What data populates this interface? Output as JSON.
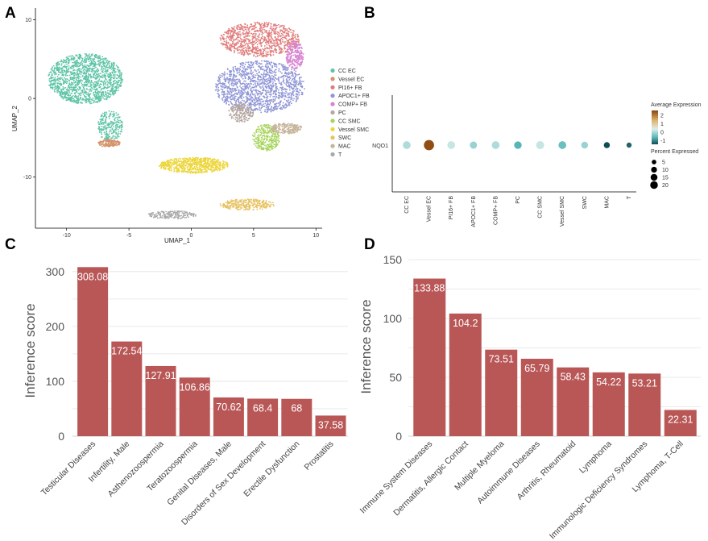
{
  "panels": {
    "A": "A",
    "B": "B",
    "C": "C",
    "D": "D"
  },
  "colors": {
    "bar": "#b95757",
    "grid": "#e3e3e3"
  },
  "chart_data": [
    {
      "id": "A",
      "type": "scatter",
      "xlabel": "UMAP_1",
      "ylabel": "UMAP_2",
      "xticks": [
        -10,
        -5,
        0,
        5,
        10
      ],
      "yticks": [
        -10,
        0,
        10
      ],
      "xlim": [
        -12.5,
        10.5
      ],
      "ylim": [
        -16.5,
        11.5
      ],
      "legend": [
        {
          "label": "CC EC",
          "color": "#5ec4a6"
        },
        {
          "label": "Vessel EC",
          "color": "#d4936a"
        },
        {
          "label": "PI16+ FB",
          "color": "#e07b7b"
        },
        {
          "label": "APOC1+ FB",
          "color": "#8f95d6"
        },
        {
          "label": "COMP+ FB",
          "color": "#d782d2"
        },
        {
          "label": "PC",
          "color": "#b5a6a0"
        },
        {
          "label": "CC SMC",
          "color": "#a7d45c"
        },
        {
          "label": "Vessel SMC",
          "color": "#ecd63c"
        },
        {
          "label": "SWC",
          "color": "#e8c262"
        },
        {
          "label": "MAC",
          "color": "#c6b49a"
        },
        {
          "label": "T",
          "color": "#a9a9a9"
        }
      ],
      "clusters": [
        {
          "name": "CC EC",
          "cx": -8.5,
          "cy": 2.5,
          "rx": 3.0,
          "ry": 3.2,
          "n": 1500
        },
        {
          "name": "CC EC",
          "cx": -6.5,
          "cy": -3.5,
          "rx": 1.0,
          "ry": 2.0,
          "n": 250
        },
        {
          "name": "Vessel EC",
          "cx": -6.6,
          "cy": -5.7,
          "rx": 0.9,
          "ry": 0.5,
          "n": 150
        },
        {
          "name": "PI16+ FB",
          "cx": 5.5,
          "cy": 7.5,
          "rx": 3.2,
          "ry": 2.2,
          "n": 900
        },
        {
          "name": "APOC1+ FB",
          "cx": 5.5,
          "cy": 1.5,
          "rx": 3.6,
          "ry": 3.3,
          "n": 1400
        },
        {
          "name": "COMP+ FB",
          "cx": 8.3,
          "cy": 5.5,
          "rx": 0.7,
          "ry": 1.8,
          "n": 250
        },
        {
          "name": "PC",
          "cx": 4.0,
          "cy": -1.8,
          "rx": 1.0,
          "ry": 1.2,
          "n": 200
        },
        {
          "name": "CC SMC",
          "cx": 6.0,
          "cy": -5.0,
          "rx": 1.1,
          "ry": 1.7,
          "n": 300
        },
        {
          "name": "MAC",
          "cx": 7.6,
          "cy": -3.8,
          "rx": 1.3,
          "ry": 0.7,
          "n": 220
        },
        {
          "name": "Vessel SMC",
          "cx": 0.2,
          "cy": -8.5,
          "rx": 2.8,
          "ry": 1.0,
          "n": 700
        },
        {
          "name": "SWC",
          "cx": 4.5,
          "cy": -13.5,
          "rx": 2.2,
          "ry": 0.7,
          "n": 300
        },
        {
          "name": "T",
          "cx": -1.5,
          "cy": -14.8,
          "rx": 2.0,
          "ry": 0.5,
          "n": 200
        }
      ]
    },
    {
      "id": "B",
      "type": "dot",
      "gene": "NQO1",
      "categories": [
        "CC EC",
        "Vessel EC",
        "PI16+ FB",
        "APOC1+ FB",
        "COMP+ FB",
        "PC",
        "CC SMC",
        "Vessel SMC",
        "SWC",
        "MAC",
        "T"
      ],
      "avg_expression": [
        -0.2,
        2.4,
        -0.1,
        -0.3,
        -0.2,
        -0.6,
        -0.1,
        -0.5,
        -0.3,
        -1.5,
        -1.3
      ],
      "pct_expressed": [
        10,
        20,
        10,
        8,
        10,
        9,
        11,
        10,
        7,
        5,
        3
      ],
      "legend": {
        "color_title": "Average Expression",
        "color_ticks": [
          2,
          1,
          0,
          -1
        ],
        "size_title": "Percent Expressed",
        "size_values": [
          5,
          10,
          15,
          20
        ]
      }
    },
    {
      "id": "C",
      "type": "bar",
      "ylabel": "Inference score",
      "ylim": [
        0,
        310
      ],
      "yticks": [
        0,
        100,
        200,
        300
      ],
      "categories": [
        "Testicular Diseases",
        "Infertility, Male",
        "Asthenozoospermia",
        "Teratozoospermia",
        "Genital Diseases, Male",
        "Disorders of Sex Development",
        "Erectile Dysfunction",
        "Prostatitis"
      ],
      "values": [
        308.08,
        172.54,
        127.91,
        106.86,
        70.62,
        68.4,
        68,
        37.58
      ],
      "labels": [
        "308.08",
        "172.54",
        "127.91",
        "106.86",
        "70.62",
        "68.4",
        "68",
        "37.58"
      ]
    },
    {
      "id": "D",
      "type": "bar",
      "ylabel": "Inference score",
      "ylim": [
        0,
        150
      ],
      "yticks": [
        0,
        50,
        100,
        150
      ],
      "categories": [
        "Immune System Diseases",
        "Dermatitis, Allergic Contact",
        "Multiple Myeloma",
        "Autoimmune Diseases",
        "Arthritis, Rheumatoid",
        "Lymphoma",
        "Immunologic Deficiency Syndromes",
        "Lymphoma, T-Cell"
      ],
      "values": [
        133.88,
        104.2,
        73.51,
        65.79,
        58.43,
        54.22,
        53.21,
        22.31
      ],
      "labels": [
        "133.88",
        "104.2",
        "73.51",
        "65.79",
        "58.43",
        "54.22",
        "53.21",
        "22.31"
      ]
    }
  ]
}
